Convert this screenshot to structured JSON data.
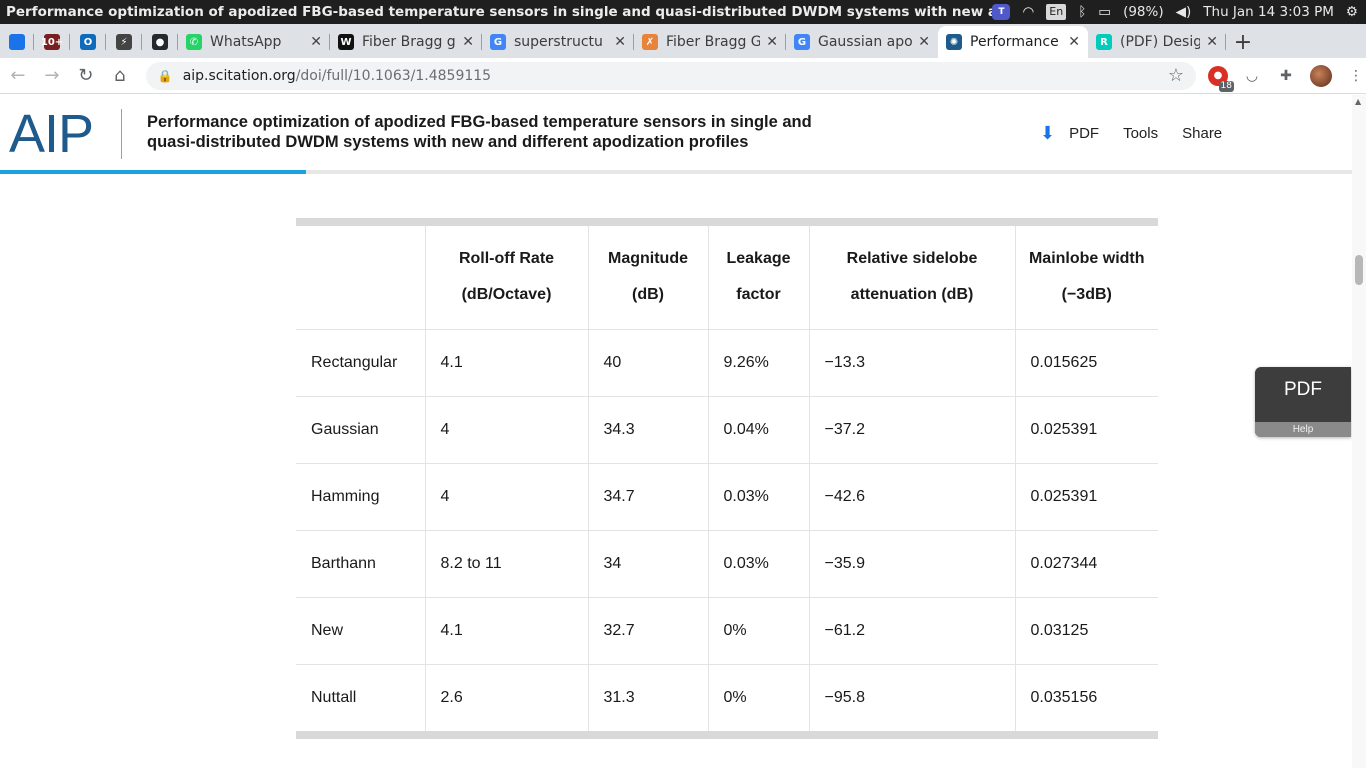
{
  "system": {
    "window_title": "Performance optimization of apodized FBG-based temperature sensors in single and quasi-distributed DWDM systems with new and",
    "teams_label": "T",
    "language": "En",
    "battery": "(98%)",
    "datetime": "Thu Jan 14  3:03 PM"
  },
  "tabs": [
    {
      "label": "",
      "icon": "chart-icon",
      "color": "#1a73e8",
      "pinned": true
    },
    {
      "label": "",
      "icon": "calendar-icon",
      "color": "#7a1f1f",
      "pinned": true,
      "glyph": "10+"
    },
    {
      "label": "",
      "icon": "outlook-icon",
      "color": "#0f6cbd",
      "pinned": true,
      "glyph": "O"
    },
    {
      "label": "",
      "icon": "bolt-icon",
      "color": "#444444",
      "pinned": true,
      "glyph": "⚡"
    },
    {
      "label": "",
      "icon": "github-icon",
      "color": "#24292e",
      "pinned": true,
      "glyph": "●"
    },
    {
      "label": "WhatsApp",
      "icon": "whatsapp-icon",
      "color": "#25d366",
      "glyph": "✆"
    },
    {
      "label": "Fiber Bragg g",
      "icon": "wikipedia-icon",
      "color": "#111111",
      "glyph": "W"
    },
    {
      "label": "superstructu",
      "icon": "google-icon",
      "color": "#4285f4",
      "glyph": "G"
    },
    {
      "label": "Fiber Bragg G",
      "icon": "sciencedirect-icon",
      "color": "#e8833a",
      "glyph": "✗"
    },
    {
      "label": "Gaussian apo",
      "icon": "google-icon",
      "color": "#4285f4",
      "glyph": "G"
    },
    {
      "label": "Performance",
      "icon": "scitation-icon",
      "color": "#1e5a8c",
      "glyph": "✺",
      "active": true
    },
    {
      "label": "(PDF) Design",
      "icon": "researchgate-icon",
      "color": "#00ccbb",
      "glyph": "R"
    }
  ],
  "address": {
    "host": "aip.scitation.org",
    "path": "/doi/full/10.1063/1.4859115"
  },
  "extensions": {
    "badge_count": "18"
  },
  "header": {
    "logo": "AIP",
    "title": "Performance optimization of apodized FBG-based temperature sensors in single and quasi-distributed DWDM systems with new and different apodization profiles",
    "actions": {
      "pdf": "PDF",
      "tools": "Tools",
      "share": "Share"
    },
    "reading_progress": 0.226
  },
  "table": {
    "headers": [
      "",
      "Roll-off Rate (dB/Octave)",
      "Magnitude (dB)",
      "Leakage factor",
      "Relative sidelobe attenuation (dB)",
      "Mainlobe width (−3dB)"
    ],
    "rows": [
      [
        "Rectangular",
        "4.1",
        "40",
        "9.26%",
        "−13.3",
        "0.015625"
      ],
      [
        "Gaussian",
        "4",
        "34.3",
        "0.04%",
        "−37.2",
        "0.025391"
      ],
      [
        "Hamming",
        "4",
        "34.7",
        "0.03%",
        "−42.6",
        "0.025391"
      ],
      [
        "Barthann",
        "8.2 to 11",
        "34",
        "0.03%",
        "−35.9",
        "0.027344"
      ],
      [
        "New",
        "4.1",
        "32.7",
        "0%",
        "−61.2",
        "0.03125"
      ],
      [
        "Nuttall",
        "2.6",
        "31.3",
        "0%",
        "−95.8",
        "0.035156"
      ]
    ]
  },
  "pdf_widget": {
    "label": "PDF",
    "help": "Help"
  }
}
